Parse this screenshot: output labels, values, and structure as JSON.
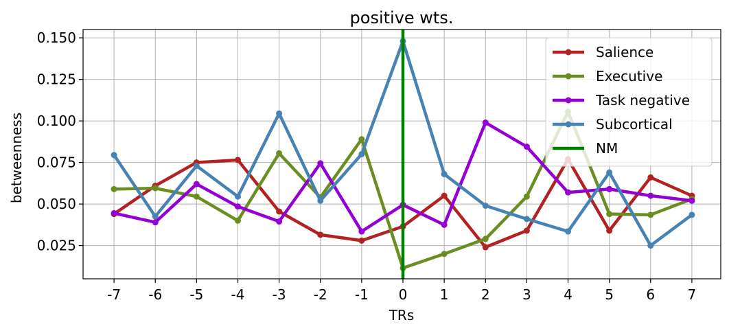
{
  "chart_data": {
    "type": "line",
    "title": "positive wts.",
    "xlabel": "TRs",
    "ylabel": "betweenness",
    "x": [
      -7,
      -6,
      -5,
      -4,
      -3,
      -2,
      -1,
      0,
      1,
      2,
      3,
      4,
      5,
      6,
      7
    ],
    "xtick_labels": [
      "-7",
      "-6",
      "-5",
      "-4",
      "-3",
      "-2",
      "-1",
      "0",
      "1",
      "2",
      "3",
      "4",
      "5",
      "6",
      "7"
    ],
    "ylim": [
      0.005,
      0.155
    ],
    "yticks": [
      0.025,
      0.05,
      0.075,
      0.1,
      0.125,
      0.15
    ],
    "ytick_labels": [
      "0.025",
      "0.050",
      "0.075",
      "0.100",
      "0.125",
      "0.150"
    ],
    "grid": true,
    "legend_position": "top-right",
    "series": [
      {
        "name": "Salience",
        "color": "#b22222",
        "values": [
          0.044,
          0.061,
          0.075,
          0.0765,
          0.0455,
          0.0315,
          0.028,
          0.0365,
          0.055,
          0.024,
          0.034,
          0.077,
          0.034,
          0.066,
          0.055
        ]
      },
      {
        "name": "Executive",
        "color": "#6b8e23",
        "values": [
          0.059,
          0.0595,
          0.0545,
          0.04,
          0.0805,
          0.054,
          0.089,
          0.0115,
          0.02,
          0.029,
          0.0545,
          0.1055,
          0.044,
          0.0435,
          0.053
        ]
      },
      {
        "name": "Task negative",
        "color": "#9400d3",
        "values": [
          0.0445,
          0.039,
          0.062,
          0.0485,
          0.0395,
          0.0745,
          0.0335,
          0.0495,
          0.0375,
          0.099,
          0.0845,
          0.057,
          0.059,
          0.055,
          0.052
        ]
      },
      {
        "name": "Subcortical",
        "color": "#4682b4",
        "values": [
          0.0795,
          0.0425,
          0.073,
          0.0545,
          0.1045,
          0.052,
          0.08,
          0.148,
          0.068,
          0.049,
          0.041,
          0.0335,
          0.069,
          0.025,
          0.0435
        ]
      }
    ],
    "vline": {
      "name": "NM",
      "x": 0,
      "color": "#008000"
    }
  }
}
